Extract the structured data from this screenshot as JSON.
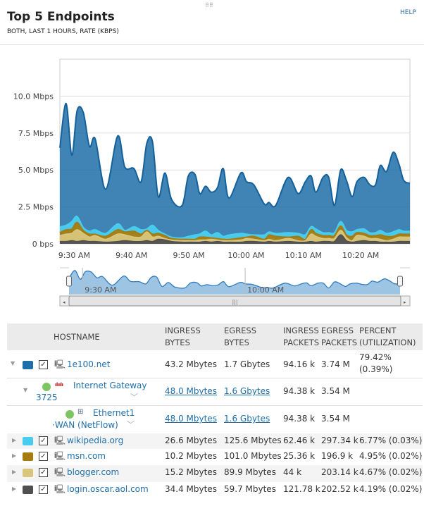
{
  "header": {
    "title": "Top 5 Endpoints",
    "subtitle": "BOTH, LAST 1 HOURS, RATE (KBPS)",
    "help": "HELP",
    "grip_icon": "drag-handle-icon"
  },
  "colors": {
    "1e100.net": "#1f6fa8",
    "wikipedia.org": "#49cdef",
    "msn.com": "#a87b10",
    "blogger.com": "#d9c57c",
    "login.oscar.aol.com": "#505050"
  },
  "chart_data": {
    "type": "area",
    "stacked": true,
    "ylabels": [
      "0 bps",
      "2.5 Mbps",
      "5.0 Mbps",
      "7.5 Mbps",
      "10.0 Mbps"
    ],
    "yticks": [
      0,
      2.5,
      5,
      7.5,
      10
    ],
    "ylim": [
      0,
      12.5
    ],
    "yunit": "Mbps",
    "xlabels": [
      "9:30 AM",
      "9:40 AM",
      "9:50 AM",
      "10:00 AM",
      "10:10 AM",
      "10:20 AM"
    ],
    "xticks": [
      "9:30:00",
      "9:40:00",
      "9:50:00",
      "10:00:00",
      "10:10:00",
      "10:20:00"
    ],
    "xlim": [
      "9:27:30",
      "10:28:35"
    ],
    "grid": true,
    "navigator": {
      "labels": [
        "9:30 AM",
        "10:00 AM"
      ],
      "ticks": [
        "9:30:00",
        "10:00:00"
      ]
    },
    "x": [
      "9:27:30",
      "9:28:35",
      "9:29:35",
      "9:30:30",
      "9:31:35",
      "9:32:40",
      "9:33:40",
      "9:35:30",
      "9:37:35",
      "9:38:50",
      "9:40:25",
      "9:41:40",
      "9:42:40",
      "9:43:40",
      "9:44:40",
      "9:45:50",
      "9:47:00",
      "9:48:50",
      "9:49:55",
      "9:51:05",
      "9:51:55",
      "9:52:55",
      "9:53:55",
      "9:55:00",
      "9:56:00",
      "9:57:00",
      "9:59:05",
      "10:00:05",
      "10:01:20",
      "10:03:10",
      "10:04:00",
      "10:05:10",
      "10:07:20",
      "10:09:05",
      "10:10:20",
      "10:11:20",
      "10:12:10",
      "10:13:25",
      "10:14:25",
      "10:15:25",
      "10:16:30",
      "10:17:30",
      "10:18:30",
      "10:19:20",
      "10:20:35",
      "10:21:35",
      "10:22:35",
      "10:23:25",
      "10:24:30",
      "10:25:40",
      "10:26:40",
      "10:27:30",
      "10:28:35"
    ],
    "series": [
      {
        "name": "login.oscar.aol.com",
        "values": [
          0.15,
          0.15,
          0.2,
          0.15,
          0.2,
          0.15,
          0.15,
          0.1,
          0.15,
          0.2,
          0.15,
          0.15,
          0.2,
          0.15,
          0.3,
          0.25,
          0.15,
          0.1,
          0.1,
          0.1,
          0.1,
          0.15,
          0.1,
          0.15,
          0.1,
          0.1,
          0.1,
          0.15,
          0.15,
          0.1,
          0.15,
          0.1,
          0.15,
          0.1,
          0.1,
          0.15,
          0.1,
          0.15,
          0.15,
          0.15,
          0.6,
          0.2,
          0.1,
          0.15,
          0.2,
          0.15,
          0.15,
          0.1,
          0.1,
          0.1,
          0.15,
          0.15,
          0.15
        ]
      },
      {
        "name": "blogger.com",
        "values": [
          0.4,
          0.5,
          0.5,
          0.8,
          0.5,
          0.3,
          0.4,
          0.2,
          0.5,
          0.4,
          0.3,
          0.3,
          0.6,
          0.3,
          0.2,
          0.1,
          0.1,
          0.1,
          0.1,
          0.1,
          0.15,
          0.1,
          0.2,
          0.1,
          0.1,
          0.1,
          0.15,
          0.2,
          0.15,
          0.1,
          0.15,
          0.1,
          0.2,
          0.1,
          0.1,
          0.5,
          0.4,
          0.2,
          0.2,
          0.2,
          0.3,
          0.2,
          0.1,
          0.4,
          0.3,
          0.2,
          0.2,
          0.2,
          0.1,
          0.2,
          0.3,
          0.3,
          0.3
        ]
      },
      {
        "name": "msn.com",
        "values": [
          0.2,
          0.3,
          0.3,
          0.5,
          0.2,
          0.2,
          0.1,
          0.2,
          0.3,
          0.2,
          0.4,
          0.2,
          0.1,
          0.2,
          0.2,
          0.2,
          0.1,
          0.1,
          0.1,
          0.1,
          0.2,
          0.2,
          0.1,
          0.1,
          0.1,
          0.1,
          0.15,
          0.1,
          0.2,
          0.1,
          0.3,
          0.3,
          0.1,
          0.3,
          0.1,
          0.3,
          0.2,
          0.2,
          0.2,
          0.2,
          0.3,
          0.2,
          0.3,
          0.2,
          0.2,
          0.2,
          0.2,
          0.3,
          0.3,
          0.2,
          0.2,
          0.2,
          0.2
        ]
      },
      {
        "name": "wikipedia.org",
        "values": [
          0.4,
          0.3,
          0.5,
          0.4,
          0.2,
          0.2,
          0.3,
          0.2,
          0.4,
          0.1,
          0.3,
          0.3,
          0.1,
          0.6,
          0.2,
          0.1,
          0.1,
          0.1,
          0.2,
          0.3,
          0.2,
          0.4,
          0.2,
          0.4,
          0.2,
          0.3,
          0.3,
          0.2,
          0.1,
          0.3,
          0.2,
          0.2,
          0.3,
          0.2,
          0.3,
          0.2,
          0.3,
          0.2,
          0.2,
          0.2,
          0.3,
          0.3,
          0.3,
          0.2,
          0.3,
          0.2,
          0.2,
          0.3,
          0.2,
          0.3,
          0.3,
          0.2,
          0.2
        ]
      },
      {
        "name": "1e100.net",
        "values": [
          5.35,
          8.25,
          4.5,
          7.15,
          7.8,
          5.75,
          6.15,
          3.0,
          5.95,
          4.3,
          3.95,
          3.25,
          5.8,
          5.65,
          2.3,
          4.15,
          2.55,
          2.2,
          4.1,
          4.1,
          2.75,
          3.05,
          2.9,
          3.05,
          4.6,
          2.5,
          4.1,
          3.55,
          3.4,
          2.1,
          2.0,
          1.9,
          3.75,
          2.7,
          3.6,
          3.45,
          2.5,
          3.75,
          3.75,
          1.85,
          3.5,
          3.4,
          2.4,
          3.25,
          3.5,
          3.25,
          3.25,
          4.4,
          4.2,
          5.4,
          4.45,
          3.45,
          3.25
        ]
      }
    ]
  },
  "table": {
    "headers": {
      "hostname": "HOSTNAME",
      "ingress_bytes": [
        "INGRESS",
        "BYTES"
      ],
      "egress_bytes": [
        "EGRESS",
        "BYTES"
      ],
      "ingress_packets": [
        "INGRESS",
        "PACKETS"
      ],
      "egress_packets": [
        "EGRESS",
        "PACKETS"
      ],
      "percent": [
        "PERCENT",
        "(UTILIZATION)"
      ]
    },
    "main_row": {
      "hostname": "1e100.net",
      "ingress_bytes": "43.2 Mbytes",
      "egress_bytes": "1.7 Gbytes",
      "ingress_packets": "94.16 k",
      "egress_packets": "3.74 M",
      "percent": [
        "79.42%",
        "(0.39%)"
      ],
      "checked": true
    },
    "sub_rows": [
      {
        "name": [
          "Internet Gateway",
          "3725"
        ],
        "ingress_bytes": "48.0 Mbytes",
        "egress_bytes": "1.6 Gbytes",
        "ingress_packets": "94.38 k",
        "egress_packets": "3.54 M",
        "status": "up",
        "icon": "cisco-router-icon"
      },
      {
        "name": [
          "Ethernet1",
          "·WAN (NetFlow)"
        ],
        "ingress_bytes": "48.0 Mbytes",
        "egress_bytes": "1.6 Gbytes",
        "ingress_packets": "94.38 k",
        "egress_packets": "3.54 M",
        "status": "up",
        "icon": "network-interface-icon"
      }
    ],
    "rows": [
      {
        "hostname": "wikipedia.org",
        "ingress_bytes": "26.6 Mbytes",
        "egress_bytes": "125.6 Mbytes",
        "ingress_packets": "62.46 k",
        "egress_packets": "297.34 k",
        "percent": "6.77% (0.03%)",
        "checked": true
      },
      {
        "hostname": "msn.com",
        "ingress_bytes": "10.2 Mbytes",
        "egress_bytes": "101.0 Mbytes",
        "ingress_packets": "25.36 k",
        "egress_packets": "196.9 k",
        "percent": "4.95% (0.02%)",
        "checked": true
      },
      {
        "hostname": "blogger.com",
        "ingress_bytes": "15.2 Mbytes",
        "egress_bytes": "89.9 Mbytes",
        "ingress_packets": "44 k",
        "egress_packets": "203.14 k",
        "percent": "4.67% (0.02%)",
        "checked": true
      },
      {
        "hostname": "login.oscar.aol.com",
        "ingress_bytes": "34.4 Mbytes",
        "egress_bytes": "59.7 Mbytes",
        "ingress_packets": "121.78 k",
        "egress_packets": "202.52 k",
        "percent": "4.19% (0.02%)",
        "checked": true
      }
    ]
  }
}
